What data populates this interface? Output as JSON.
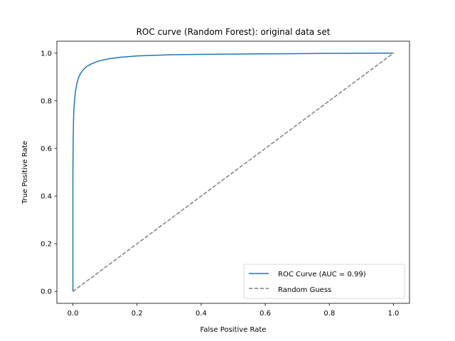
{
  "chart_data": {
    "type": "line",
    "title": "ROC curve (Random Forest): original data set",
    "xlabel": "False Positive Rate",
    "ylabel": "True Positive Rate",
    "xlim": [
      -0.05,
      1.05
    ],
    "ylim": [
      -0.05,
      1.05
    ],
    "xticks": [
      0.0,
      0.2,
      0.4,
      0.6,
      0.8,
      1.0
    ],
    "yticks": [
      0.0,
      0.2,
      0.4,
      0.6,
      0.8,
      1.0
    ],
    "xtick_labels": [
      "0.0",
      "0.2",
      "0.4",
      "0.6",
      "0.8",
      "1.0"
    ],
    "ytick_labels": [
      "0.0",
      "0.2",
      "0.4",
      "0.6",
      "0.8",
      "1.0"
    ],
    "grid": false,
    "legend_position": "lower-right",
    "series": [
      {
        "name": "ROC Curve (AUC = 0.99)",
        "color": "#1f77b4",
        "style": "solid",
        "x": [
          0.0,
          0.0,
          0.001,
          0.002,
          0.003,
          0.005,
          0.008,
          0.012,
          0.017,
          0.024,
          0.032,
          0.042,
          0.055,
          0.07,
          0.09,
          0.115,
          0.15,
          0.2,
          0.3,
          0.4,
          0.5,
          0.6,
          0.7,
          0.8,
          0.9,
          1.0
        ],
        "y": [
          0.0,
          0.5,
          0.65,
          0.72,
          0.76,
          0.8,
          0.84,
          0.87,
          0.895,
          0.915,
          0.93,
          0.943,
          0.953,
          0.962,
          0.97,
          0.977,
          0.983,
          0.988,
          0.993,
          0.995,
          0.996,
          0.997,
          0.998,
          0.999,
          0.9995,
          1.0
        ]
      },
      {
        "name": "Random Guess",
        "color": "#808080",
        "style": "dashed",
        "x": [
          0.0,
          1.0
        ],
        "y": [
          0.0,
          1.0
        ]
      }
    ]
  }
}
